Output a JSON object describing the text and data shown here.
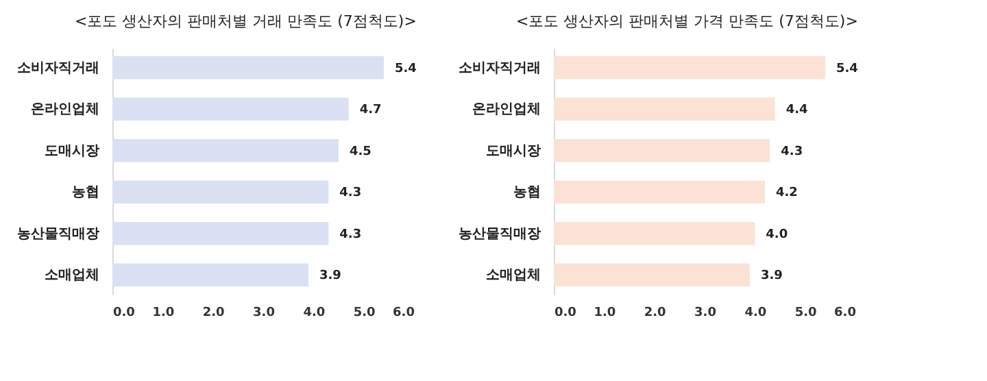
{
  "chart_data": [
    {
      "type": "bar",
      "orientation": "horizontal",
      "title": "<포도 생산자의 판매처별 거래 만족도 (7점척도)>",
      "categories": [
        "소비자직거래",
        "온라인업체",
        "도매시장",
        "농협",
        "농산물직매장",
        "소매업체"
      ],
      "values": [
        5.4,
        4.7,
        4.5,
        4.3,
        4.3,
        3.9
      ],
      "value_labels": [
        "5.4",
        "4.7",
        "4.5",
        "4.3",
        "4.3",
        "3.9"
      ],
      "color": "#d9e1f2",
      "xlim": [
        0,
        6
      ],
      "xticks": [
        {
          "value": 0,
          "label": "0.0"
        },
        {
          "value": 1,
          "label": "1.0"
        },
        {
          "value": 2,
          "label": "2.0"
        },
        {
          "value": 3,
          "label": "3.0"
        },
        {
          "value": 4,
          "label": "4.0"
        },
        {
          "value": 5,
          "label": "5.0"
        },
        {
          "value": 6,
          "label": "6.0"
        }
      ],
      "grid": false
    },
    {
      "type": "bar",
      "orientation": "horizontal",
      "title": "<포도 생산자의 판매처별 가격 만족도 (7점척도)>",
      "categories": [
        "소비자직거래",
        "온라인업체",
        "도매시장",
        "농협",
        "농산물직매장",
        "소매업체"
      ],
      "values": [
        5.4,
        4.4,
        4.3,
        4.2,
        4.0,
        3.9
      ],
      "value_labels": [
        "5.4",
        "4.4",
        "4.3",
        "4.2",
        "4.0",
        "3.9"
      ],
      "color": "#fbe2d5",
      "xlim": [
        0,
        6
      ],
      "xticks": [
        {
          "value": 0,
          "label": "0.0"
        },
        {
          "value": 1,
          "label": "1.0"
        },
        {
          "value": 2,
          "label": "2.0"
        },
        {
          "value": 3,
          "label": "3.0"
        },
        {
          "value": 4,
          "label": "4.0"
        },
        {
          "value": 5,
          "label": "5.0"
        },
        {
          "value": 6,
          "label": "6.0"
        }
      ],
      "grid": false
    }
  ]
}
